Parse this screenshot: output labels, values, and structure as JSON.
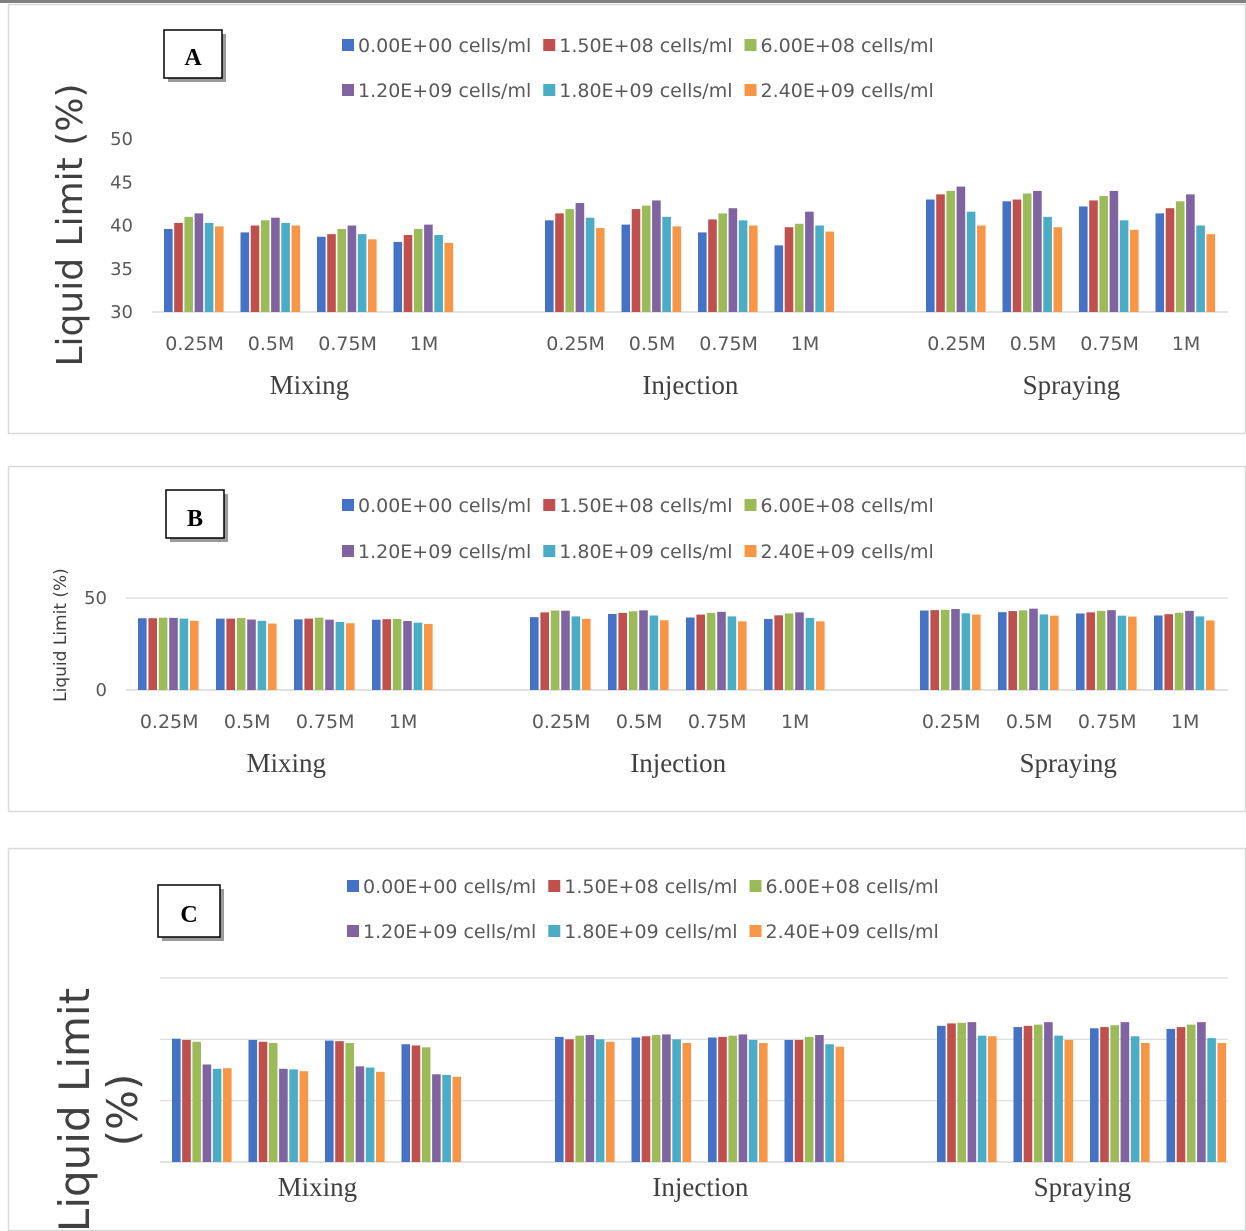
{
  "colors": {
    "series": [
      "#4472C4",
      "#C0504D",
      "#9BBB59",
      "#8064A2",
      "#4BACC6",
      "#F79646"
    ],
    "grid": "#d9d9d9",
    "frame": "#d9d9d9"
  },
  "chart_data": [
    {
      "type": "bar",
      "panel_label": "A",
      "ylabel": "Liquid Limit (%)",
      "ylim": [
        30,
        50
      ],
      "yticks": [
        "30",
        "35",
        "40",
        "45",
        "50"
      ],
      "grid": false,
      "legend_position": "top",
      "groups": [
        "Mixing",
        "Injection",
        "Spraying"
      ],
      "categories": [
        "0.25M",
        "0.5M",
        "0.75M",
        "1M"
      ],
      "series": [
        {
          "name": "0.00E+00 cells/ml",
          "values": [
            [
              39.6,
              39.2,
              38.7,
              38.1
            ],
            [
              40.6,
              40.1,
              39.2,
              37.7
            ],
            [
              43.0,
              42.8,
              42.2,
              41.4
            ]
          ]
        },
        {
          "name": "1.50E+08 cells/ml",
          "values": [
            [
              40.3,
              40.0,
              39.0,
              38.9
            ],
            [
              41.4,
              41.9,
              40.7,
              39.8
            ],
            [
              43.6,
              43.0,
              42.9,
              42.0
            ]
          ]
        },
        {
          "name": "6.00E+08 cells/ml",
          "values": [
            [
              41.0,
              40.6,
              39.6,
              39.6
            ],
            [
              41.9,
              42.3,
              41.4,
              40.2
            ],
            [
              44.0,
              43.7,
              43.4,
              42.8
            ]
          ]
        },
        {
          "name": "1.20E+09 cells/ml",
          "values": [
            [
              41.4,
              40.9,
              40.0,
              40.1
            ],
            [
              42.6,
              42.9,
              42.0,
              41.6
            ],
            [
              44.5,
              44.0,
              44.0,
              43.6
            ]
          ]
        },
        {
          "name": "1.80E+09 cells/ml",
          "values": [
            [
              40.3,
              40.3,
              39.0,
              38.9
            ],
            [
              40.9,
              41.0,
              40.6,
              40.0
            ],
            [
              41.6,
              41.0,
              40.6,
              40.0
            ]
          ]
        },
        {
          "name": "2.40E+09 cells/ml",
          "values": [
            [
              39.9,
              40.0,
              38.4,
              38.0
            ],
            [
              39.7,
              39.9,
              40.0,
              39.3
            ],
            [
              40.0,
              39.8,
              39.5,
              39.0
            ]
          ]
        }
      ]
    },
    {
      "type": "bar",
      "panel_label": "B",
      "ylabel": "Liquid Limit (%)",
      "ylim": [
        0,
        50
      ],
      "yticks": [
        "0",
        "50"
      ],
      "grid": true,
      "legend_position": "top",
      "groups": [
        "Mixing",
        "Injection",
        "Spraying"
      ],
      "categories": [
        "0.25M",
        "0.5M",
        "0.75M",
        "1M"
      ],
      "series": [
        {
          "name": "0.00E+00 cells/ml",
          "values": [
            [
              39.0,
              38.8,
              38.4,
              38.2
            ],
            [
              39.6,
              41.3,
              39.4,
              38.6
            ],
            [
              43.2,
              42.3,
              41.6,
              40.5
            ]
          ]
        },
        {
          "name": "1.50E+08 cells/ml",
          "values": [
            [
              39.0,
              38.8,
              38.8,
              38.5
            ],
            [
              42.2,
              41.9,
              41.0,
              40.6
            ],
            [
              43.4,
              42.9,
              42.2,
              41.2
            ]
          ]
        },
        {
          "name": "6.00E+08 cells/ml",
          "values": [
            [
              39.3,
              39.1,
              39.3,
              38.6
            ],
            [
              43.2,
              42.8,
              41.9,
              41.6
            ],
            [
              43.6,
              43.3,
              43.0,
              42.0
            ]
          ]
        },
        {
          "name": "1.20E+09 cells/ml",
          "values": [
            [
              39.2,
              38.3,
              38.2,
              37.5
            ],
            [
              43.1,
              43.3,
              42.5,
              42.2
            ],
            [
              44.0,
              44.2,
              43.4,
              43.0
            ]
          ]
        },
        {
          "name": "1.80E+09 cells/ml",
          "values": [
            [
              38.8,
              37.6,
              37.0,
              36.6
            ],
            [
              40.0,
              40.5,
              40.0,
              39.2
            ],
            [
              41.7,
              41.1,
              40.4,
              40.0
            ]
          ]
        },
        {
          "name": "2.40E+09 cells/ml",
          "values": [
            [
              37.6,
              36.1,
              36.3,
              35.9
            ],
            [
              38.7,
              37.9,
              37.3,
              37.3
            ],
            [
              41.0,
              40.4,
              39.9,
              37.8
            ]
          ]
        }
      ]
    },
    {
      "type": "bar",
      "panel_label": "C",
      "ylabel": "Liquid Limit (%)",
      "ylim": [
        0,
        3
      ],
      "yticks": [],
      "grid": true,
      "legend_position": "top",
      "groups": [
        "Mixing",
        "Injection",
        "Spraying"
      ],
      "categories": [
        "",
        "",
        "",
        ""
      ],
      "series": [
        {
          "name": "0.00E+00 cells/ml",
          "values": [
            [
              2.01,
              1.99,
              1.98,
              1.92
            ],
            [
              2.04,
              2.03,
              2.03,
              1.99
            ],
            [
              2.22,
              2.2,
              2.18,
              2.17
            ]
          ]
        },
        {
          "name": "1.50E+08 cells/ml",
          "values": [
            [
              1.99,
              1.96,
              1.97,
              1.9
            ],
            [
              2.0,
              2.05,
              2.04,
              1.99
            ],
            [
              2.26,
              2.22,
              2.2,
              2.2
            ]
          ]
        },
        {
          "name": "6.00E+08 cells/ml",
          "values": [
            [
              1.96,
              1.94,
              1.94,
              1.87
            ],
            [
              2.06,
              2.07,
              2.06,
              2.04
            ],
            [
              2.27,
              2.24,
              2.23,
              2.24
            ]
          ]
        },
        {
          "name": "1.20E+09 cells/ml",
          "values": [
            [
              1.59,
              1.52,
              1.56,
              1.43
            ],
            [
              2.07,
              2.08,
              2.08,
              2.07
            ],
            [
              2.28,
              2.28,
              2.28,
              2.28
            ]
          ]
        },
        {
          "name": "1.80E+09 cells/ml",
          "values": [
            [
              1.52,
              1.51,
              1.54,
              1.42
            ],
            [
              2.0,
              2.0,
              1.99,
              1.92
            ],
            [
              2.06,
              2.06,
              2.05,
              2.02
            ]
          ]
        },
        {
          "name": "2.40E+09 cells/ml",
          "values": [
            [
              1.53,
              1.48,
              1.47,
              1.39
            ],
            [
              1.96,
              1.94,
              1.94,
              1.88
            ],
            [
              2.05,
              1.99,
              1.94,
              1.94
            ]
          ]
        }
      ]
    }
  ]
}
